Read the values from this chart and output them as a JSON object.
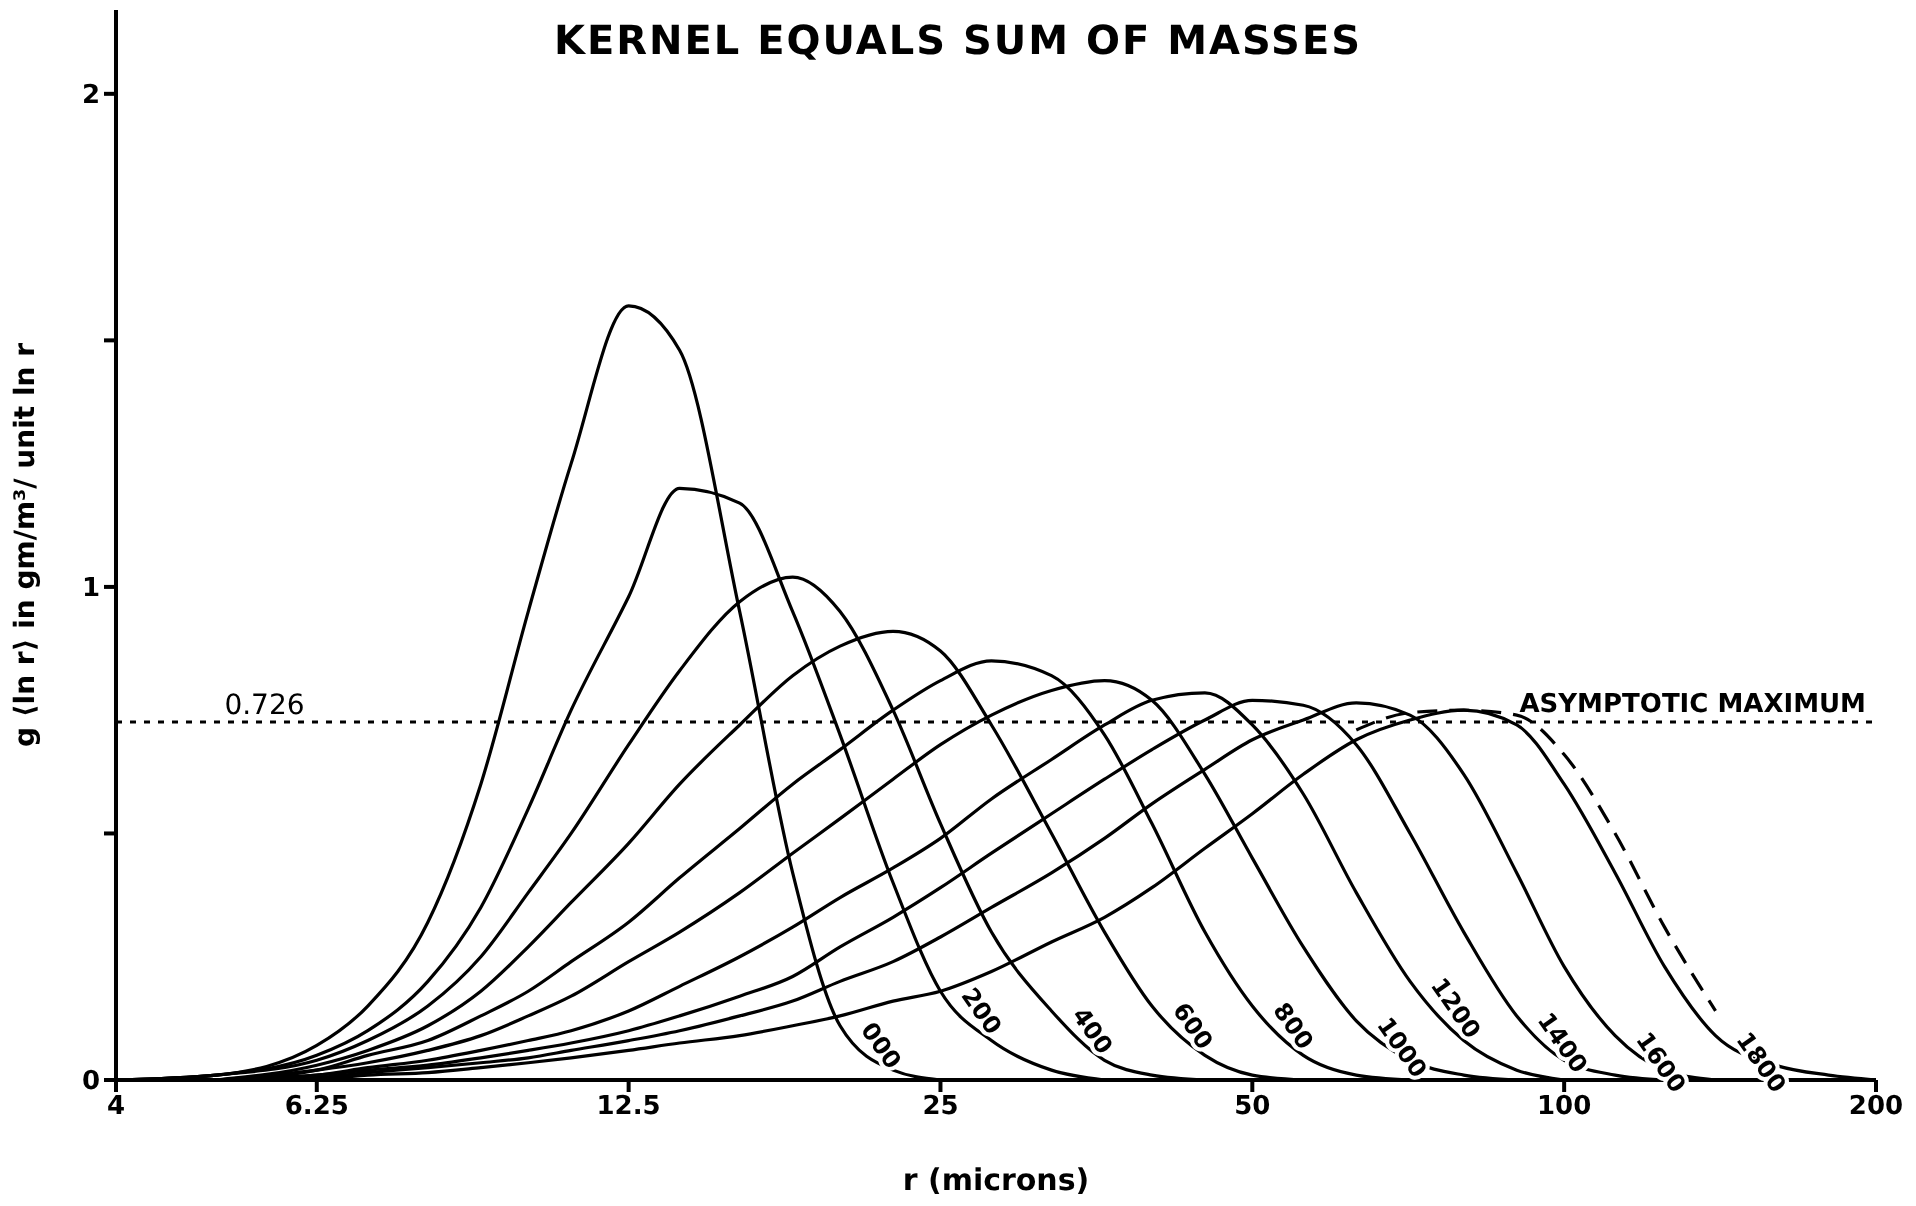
{
  "chart_data": {
    "type": "line",
    "title": "KERNEL EQUALS SUM OF MASSES",
    "xlabel": "r (microns)",
    "ylabel": "g ⟨ln r⟩ in gm/m³/ unit ln r",
    "log": "x",
    "marker": "none",
    "x": [
      4,
      5,
      6.25,
      7,
      8,
      9,
      10,
      11,
      12.5,
      14,
      16,
      18,
      20,
      22.5,
      25,
      28,
      32,
      36,
      40,
      45,
      50,
      56,
      63,
      71,
      80,
      90,
      100,
      112,
      125,
      140,
      160,
      180,
      200
    ],
    "xlim": [
      4,
      200
    ],
    "xticks": [
      4,
      6.25,
      12.5,
      25,
      50,
      100,
      200
    ],
    "ylim": [
      0,
      2.17
    ],
    "yticks": [
      0,
      {
        "value": 0.5,
        "label": null
      },
      1,
      {
        "value": 1.5,
        "label": null
      },
      2
    ],
    "series": [
      {
        "name": "000",
        "color": "#000000",
        "line_style": "solid",
        "values": [
          0,
          0.01,
          0.07,
          0.15,
          0.32,
          0.6,
          0.95,
          1.25,
          1.57,
          1.48,
          0.95,
          0.42,
          0.11,
          0.02,
          0,
          null,
          null,
          null,
          null,
          null,
          null,
          null,
          null,
          null,
          null,
          null,
          null,
          null,
          null,
          null,
          null,
          null,
          null
        ]
      },
      {
        "name": "200",
        "color": "#000000",
        "line_style": "solid",
        "values": [
          0,
          0.01,
          0.05,
          0.1,
          0.2,
          0.35,
          0.55,
          0.75,
          0.98,
          1.2,
          1.17,
          0.95,
          0.7,
          0.4,
          0.18,
          0.08,
          0.02,
          0,
          null,
          null,
          null,
          null,
          null,
          null,
          null,
          null,
          null,
          null,
          null,
          null,
          null,
          null,
          null
        ]
      },
      {
        "name": "400",
        "color": "#000000",
        "line_style": "solid",
        "values": [
          0,
          0.01,
          0.04,
          0.08,
          0.15,
          0.25,
          0.38,
          0.5,
          0.68,
          0.83,
          0.97,
          1.02,
          0.95,
          0.75,
          0.52,
          0.3,
          0.14,
          0.04,
          0.01,
          0,
          null,
          null,
          null,
          null,
          null,
          null,
          null,
          null,
          null,
          null,
          null,
          null,
          null
        ]
      },
      {
        "name": "600",
        "color": "#000000",
        "line_style": "solid",
        "values": [
          null,
          0,
          0.03,
          0.06,
          0.11,
          0.18,
          0.27,
          0.36,
          0.48,
          0.6,
          0.72,
          0.82,
          0.88,
          0.91,
          0.87,
          0.72,
          0.5,
          0.3,
          0.15,
          0.05,
          0.01,
          0,
          null,
          null,
          null,
          null,
          null,
          null,
          null,
          null,
          null,
          null,
          null
        ]
      },
      {
        "name": "800",
        "color": "#000000",
        "line_style": "solid",
        "values": [
          null,
          0,
          0.02,
          0.05,
          0.08,
          0.13,
          0.18,
          0.24,
          0.32,
          0.41,
          0.51,
          0.6,
          0.67,
          0.75,
          0.81,
          0.85,
          0.82,
          0.7,
          0.52,
          0.3,
          0.15,
          0.05,
          0.01,
          0,
          null,
          null,
          null,
          null,
          null,
          null,
          null,
          null,
          null
        ]
      },
      {
        "name": "1000",
        "color": "#000000",
        "line_style": "solid",
        "values": [
          null,
          0,
          0.02,
          0.035,
          0.06,
          0.09,
          0.13,
          0.17,
          0.24,
          0.3,
          0.38,
          0.46,
          0.53,
          0.61,
          0.68,
          0.74,
          0.79,
          0.81,
          0.77,
          0.62,
          0.45,
          0.27,
          0.12,
          0.04,
          0.01,
          0,
          null,
          null,
          null,
          null,
          null,
          null,
          null
        ]
      },
      {
        "name": "1200",
        "color": "#000000",
        "line_style": "solid",
        "values": [
          null,
          0,
          0.01,
          0.025,
          0.04,
          0.06,
          0.08,
          0.1,
          0.14,
          0.19,
          0.25,
          0.31,
          0.37,
          0.43,
          0.49,
          0.57,
          0.65,
          0.72,
          0.77,
          0.785,
          0.72,
          0.58,
          0.38,
          0.2,
          0.08,
          0.02,
          0,
          null,
          null,
          null,
          null,
          null,
          null
        ]
      },
      {
        "name": "1400",
        "color": "#000000",
        "line_style": "solid",
        "values": [
          null,
          0,
          0.01,
          0.02,
          0.03,
          0.045,
          0.06,
          0.075,
          0.1,
          0.13,
          0.17,
          0.21,
          0.27,
          0.33,
          0.39,
          0.46,
          0.54,
          0.61,
          0.67,
          0.73,
          0.77,
          0.76,
          0.68,
          0.5,
          0.3,
          0.13,
          0.04,
          0.01,
          0,
          null,
          null,
          null,
          null
        ]
      },
      {
        "name": "1600",
        "color": "#000000",
        "line_style": "solid",
        "values": [
          null,
          0,
          0.005,
          0.015,
          0.025,
          0.035,
          0.045,
          0.06,
          0.08,
          0.1,
          0.13,
          0.16,
          0.2,
          0.24,
          0.29,
          0.35,
          0.42,
          0.49,
          0.56,
          0.63,
          0.69,
          0.73,
          0.765,
          0.74,
          0.62,
          0.42,
          0.23,
          0.09,
          0.02,
          0,
          null,
          null,
          null
        ]
      },
      {
        "name": "1800",
        "color": "#000000",
        "line_style": "solid",
        "values": [
          null,
          null,
          0,
          0.01,
          0.015,
          0.025,
          0.035,
          0.045,
          0.06,
          0.075,
          0.09,
          0.11,
          0.13,
          0.16,
          0.18,
          0.22,
          0.28,
          0.33,
          0.39,
          0.47,
          0.54,
          0.62,
          0.69,
          0.73,
          0.75,
          0.72,
          0.6,
          0.42,
          0.23,
          0.09,
          0.03,
          0.01,
          0
        ]
      },
      {
        "color": "#000000",
        "line_style": "dashed",
        "x": [
          63,
          71,
          80,
          90,
          100,
          112,
          125,
          140
        ],
        "values": [
          0.71,
          0.745,
          0.75,
          0.74,
          0.66,
          0.5,
          0.31,
          0.14
        ]
      }
    ],
    "ref_lines": [
      {
        "axis": "y",
        "value": 0.726,
        "label": "ASYMPTOTIC MAXIMUM",
        "line_style": "dotted",
        "color": "#000000"
      }
    ],
    "annotations": [
      {
        "text": "0.726",
        "x": 5,
        "y": 0.726
      }
    ]
  }
}
